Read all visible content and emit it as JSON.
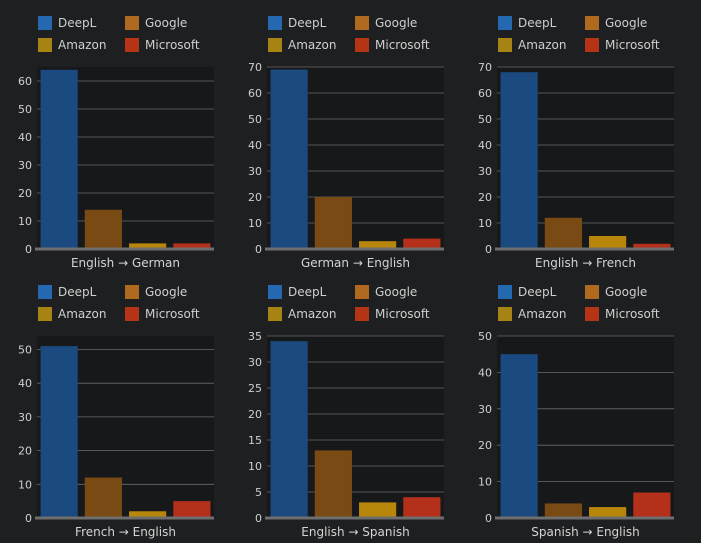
{
  "legend": {
    "entries": [
      "DeepL",
      "Google",
      "Amazon",
      "Microsoft"
    ]
  },
  "colors": {
    "DeepL": "#1a4a7f",
    "Google": "#7a4a14",
    "Amazon": "#b8860b",
    "Microsoft": "#b5301a",
    "swatch_DeepL": "#2468b0",
    "swatch_Google": "#b06a20",
    "swatch_Amazon": "#a88414",
    "swatch_Microsoft": "#b53416"
  },
  "chart_data": [
    {
      "type": "bar",
      "title": "",
      "xlabel": "English → German",
      "ylabel": "",
      "categories": [
        "DeepL",
        "Google",
        "Amazon",
        "Microsoft"
      ],
      "values": [
        64,
        14,
        2,
        2
      ],
      "ylim": [
        0,
        65
      ],
      "yticks": [
        0,
        10,
        20,
        30,
        40,
        50,
        60
      ]
    },
    {
      "type": "bar",
      "title": "",
      "xlabel": "German → English",
      "ylabel": "",
      "categories": [
        "DeepL",
        "Google",
        "Amazon",
        "Microsoft"
      ],
      "values": [
        69,
        20,
        3,
        4
      ],
      "ylim": [
        0,
        70
      ],
      "yticks": [
        0,
        10,
        20,
        30,
        40,
        50,
        60,
        70
      ]
    },
    {
      "type": "bar",
      "title": "",
      "xlabel": "English → French",
      "ylabel": "",
      "categories": [
        "DeepL",
        "Google",
        "Amazon",
        "Microsoft"
      ],
      "values": [
        68,
        12,
        5,
        2
      ],
      "ylim": [
        0,
        70
      ],
      "yticks": [
        0,
        10,
        20,
        30,
        40,
        50,
        60,
        70
      ]
    },
    {
      "type": "bar",
      "title": "",
      "xlabel": "French → English",
      "ylabel": "",
      "categories": [
        "DeepL",
        "Google",
        "Amazon",
        "Microsoft"
      ],
      "values": [
        51,
        12,
        2,
        5
      ],
      "ylim": [
        0,
        54
      ],
      "yticks": [
        0,
        10,
        20,
        30,
        40,
        50
      ]
    },
    {
      "type": "bar",
      "title": "",
      "xlabel": "English → Spanish",
      "ylabel": "",
      "categories": [
        "DeepL",
        "Google",
        "Amazon",
        "Microsoft"
      ],
      "values": [
        34,
        13,
        3,
        4
      ],
      "ylim": [
        0,
        35
      ],
      "yticks": [
        0,
        5,
        10,
        15,
        20,
        25,
        30,
        35
      ]
    },
    {
      "type": "bar",
      "title": "",
      "xlabel": "Spanish → English",
      "ylabel": "",
      "categories": [
        "DeepL",
        "Google",
        "Amazon",
        "Microsoft"
      ],
      "values": [
        45,
        4,
        3,
        7
      ],
      "ylim": [
        0,
        50
      ],
      "yticks": [
        0,
        10,
        20,
        30,
        40,
        50
      ]
    }
  ]
}
